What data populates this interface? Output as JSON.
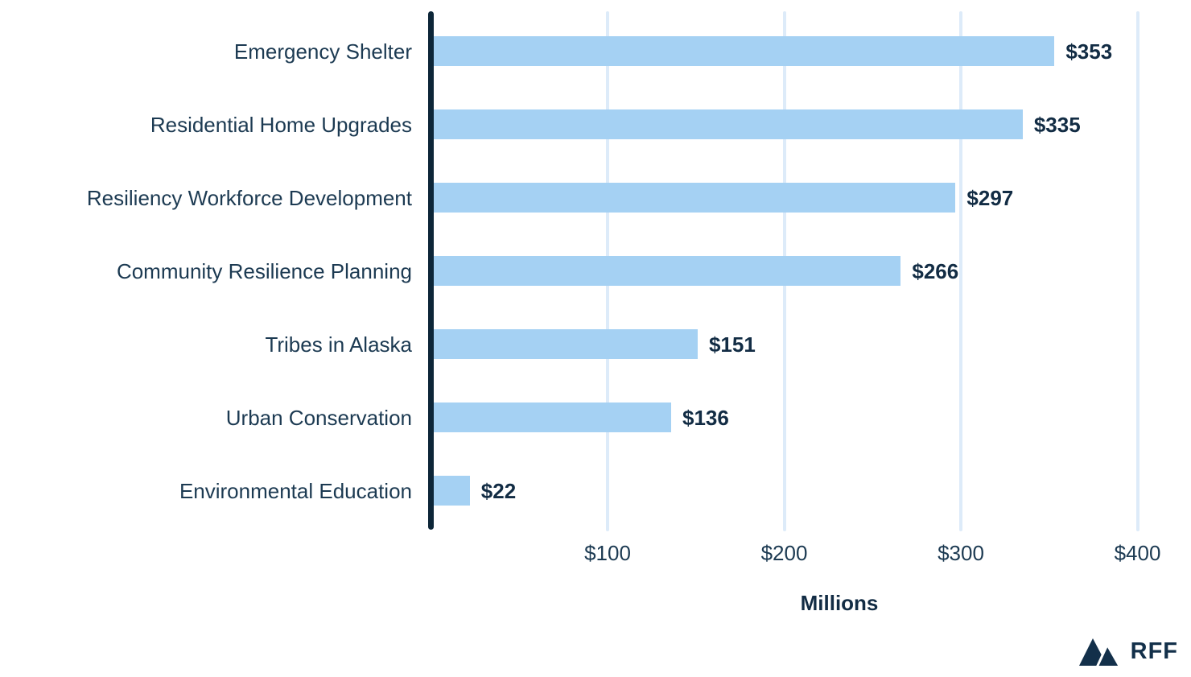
{
  "chart_data": {
    "type": "bar",
    "orientation": "horizontal",
    "title": "",
    "categories": [
      "Emergency Shelter",
      "Residential Home Upgrades",
      "Resiliency Workforce Development",
      "Community Resilience Planning",
      "Tribes in Alaska",
      "Urban Conservation",
      "Environmental Education"
    ],
    "values": [
      353,
      335,
      297,
      266,
      151,
      136,
      22
    ],
    "value_labels": [
      "$353",
      "$335",
      "$297",
      "$266",
      "$151",
      "$136",
      "$22"
    ],
    "xlabel": "Millions",
    "ylabel": "",
    "xlim": [
      0,
      400
    ],
    "x_tick_values": [
      100,
      200,
      300,
      400
    ],
    "x_tick_labels": [
      "$100",
      "$200",
      "$300",
      "$400"
    ],
    "grid": "vertical-gridlines-behind-bars",
    "legend": "none"
  },
  "branding": {
    "logo_text": "RFF",
    "logo_icon": "mountains-icon"
  },
  "colors": {
    "background": "#ffffff",
    "bar": "#a5d1f3",
    "gridline": "#ddebf9",
    "axis": "#0d2638",
    "category_text": "#1c3a52",
    "value_text": "#122c44",
    "tick_text": "#1c3a52",
    "logo": "#13304a"
  }
}
